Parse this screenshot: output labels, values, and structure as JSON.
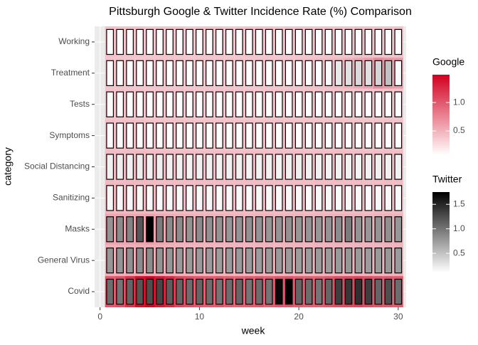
{
  "chart_data": {
    "type": "heatmap",
    "title": "Pittsburgh Google & Twitter Incidence Rate (%) Comparison",
    "x_label": "week",
    "y_label": "category",
    "categories": [
      "Working",
      "Treatment",
      "Tests",
      "Symptoms",
      "Social Distancing",
      "Sanitizing",
      "Masks",
      "General Virus",
      "Covid"
    ],
    "x": [
      1,
      2,
      3,
      4,
      5,
      6,
      7,
      8,
      9,
      10,
      11,
      12,
      13,
      14,
      15,
      16,
      17,
      18,
      19,
      20,
      21,
      22,
      23,
      24,
      25,
      26,
      27,
      28,
      29,
      30
    ],
    "xlim": [
      -0.55,
      30.8
    ],
    "xticks": [
      0,
      10,
      20,
      30
    ],
    "grid": true,
    "series": [
      {
        "name": "Google",
        "color": "#d1001f",
        "clim": [
          0.075,
          1.49
        ],
        "ticks": [
          0.5,
          {
            "value": 1,
            "label": "1.0"
          }
        ],
        "values": [
          [
            0.42,
            0.4,
            0.41,
            0.4,
            0.39,
            0.4,
            0.41,
            0.4,
            0.38,
            0.4,
            0.41,
            0.4,
            0.39,
            0.4,
            0.42,
            0.4,
            0.41,
            0.39,
            0.4,
            0.4,
            0.41,
            0.4,
            0.42,
            0.41,
            0.4,
            0.43,
            0.42,
            0.41,
            0.4,
            0.42
          ],
          [
            0.4,
            0.41,
            0.4,
            0.39,
            0.4,
            0.41,
            0.4,
            0.4,
            0.39,
            0.41,
            0.4,
            0.4,
            0.41,
            0.4,
            0.39,
            0.4,
            0.41,
            0.4,
            0.4,
            0.41,
            0.42,
            0.43,
            0.44,
            0.46,
            0.5,
            0.55,
            0.6,
            0.72,
            0.65,
            0.62
          ],
          [
            0.4,
            0.41,
            0.4,
            0.4,
            0.39,
            0.4,
            0.4,
            0.41,
            0.4,
            0.39,
            0.4,
            0.4,
            0.41,
            0.4,
            0.4,
            0.39,
            0.4,
            0.41,
            0.4,
            0.4,
            0.41,
            0.4,
            0.4,
            0.41,
            0.4,
            0.4,
            0.39,
            0.4,
            0.41,
            0.4
          ],
          [
            0.43,
            0.42,
            0.44,
            0.43,
            0.42,
            0.42,
            0.41,
            0.42,
            0.42,
            0.41,
            0.42,
            0.42,
            0.41,
            0.42,
            0.42,
            0.41,
            0.42,
            0.43,
            0.42,
            0.42,
            0.41,
            0.42,
            0.42,
            0.43,
            0.42,
            0.42,
            0.41,
            0.42,
            0.43,
            0.42
          ],
          [
            0.46,
            0.45,
            0.46,
            0.47,
            0.46,
            0.45,
            0.45,
            0.44,
            0.45,
            0.45,
            0.44,
            0.45,
            0.45,
            0.44,
            0.45,
            0.45,
            0.44,
            0.45,
            0.46,
            0.45,
            0.44,
            0.45,
            0.45,
            0.46,
            0.45,
            0.45,
            0.44,
            0.45,
            0.46,
            0.45
          ],
          [
            0.48,
            0.47,
            0.48,
            0.47,
            0.47,
            0.46,
            0.46,
            0.46,
            0.45,
            0.46,
            0.46,
            0.45,
            0.46,
            0.46,
            0.45,
            0.46,
            0.46,
            0.45,
            0.46,
            0.46,
            0.45,
            0.46,
            0.46,
            0.45,
            0.46,
            0.46,
            0.45,
            0.46,
            0.46,
            0.45
          ],
          [
            0.58,
            0.58,
            0.57,
            0.58,
            0.6,
            0.56,
            0.54,
            0.52,
            0.52,
            0.51,
            0.5,
            0.51,
            0.5,
            0.5,
            0.49,
            0.5,
            0.5,
            0.49,
            0.5,
            0.5,
            0.49,
            0.5,
            0.5,
            0.51,
            0.5,
            0.5,
            0.49,
            0.5,
            0.51,
            0.5
          ],
          [
            0.52,
            0.52,
            0.53,
            0.54,
            0.54,
            0.53,
            0.52,
            0.51,
            0.5,
            0.5,
            0.5,
            0.49,
            0.5,
            0.5,
            0.49,
            0.5,
            0.5,
            0.49,
            0.5,
            0.5,
            0.49,
            0.5,
            0.5,
            0.5,
            0.49,
            0.5,
            0.5,
            0.49,
            0.5,
            0.5
          ],
          [
            1.0,
            1.05,
            1.2,
            1.4,
            1.45,
            1.35,
            1.25,
            1.1,
            1.05,
            1.0,
            0.98,
            1.0,
            0.97,
            0.95,
            0.98,
            1.0,
            0.97,
            1.0,
            1.02,
            0.98,
            0.97,
            0.96,
            1.0,
            1.05,
            1.08,
            1.1,
            1.05,
            1.02,
            1.0,
            0.98
          ]
        ]
      },
      {
        "name": "Twitter",
        "color": "#000000",
        "clim": [
          0.11,
          1.75
        ],
        "ticks": [
          0.5,
          {
            "value": 1,
            "label": "1.0"
          },
          1.5
        ],
        "values": [
          [
            0.12,
            0.12,
            0.12,
            0.12,
            0.12,
            0.12,
            0.12,
            0.12,
            0.12,
            0.12,
            0.12,
            0.12,
            0.12,
            0.12,
            0.12,
            0.12,
            0.12,
            0.12,
            0.12,
            0.12,
            0.12,
            0.12,
            0.12,
            0.12,
            0.12,
            0.12,
            0.12,
            0.12,
            0.12,
            0.12
          ],
          [
            0.12,
            0.12,
            0.12,
            0.12,
            0.12,
            0.12,
            0.12,
            0.12,
            0.12,
            0.12,
            0.12,
            0.12,
            0.12,
            0.12,
            0.12,
            0.12,
            0.12,
            0.12,
            0.12,
            0.12,
            0.12,
            0.12,
            0.14,
            0.25,
            0.3,
            0.35,
            0.3,
            0.38,
            0.5,
            0.14
          ],
          [
            0.12,
            0.12,
            0.12,
            0.12,
            0.12,
            0.12,
            0.12,
            0.12,
            0.12,
            0.12,
            0.12,
            0.12,
            0.12,
            0.12,
            0.12,
            0.12,
            0.12,
            0.12,
            0.12,
            0.12,
            0.12,
            0.12,
            0.12,
            0.12,
            0.12,
            0.12,
            0.12,
            0.12,
            0.12,
            0.12
          ],
          [
            0.13,
            0.13,
            0.13,
            0.13,
            0.13,
            0.13,
            0.13,
            0.13,
            0.13,
            0.13,
            0.13,
            0.13,
            0.13,
            0.13,
            0.13,
            0.13,
            0.13,
            0.13,
            0.13,
            0.13,
            0.13,
            0.13,
            0.13,
            0.13,
            0.13,
            0.13,
            0.13,
            0.13,
            0.13,
            0.13
          ],
          [
            0.2,
            0.21,
            0.2,
            0.22,
            0.2,
            0.21,
            0.2,
            0.2,
            0.19,
            0.2,
            0.2,
            0.19,
            0.2,
            0.2,
            0.19,
            0.2,
            0.2,
            0.19,
            0.2,
            0.21,
            0.2,
            0.2,
            0.19,
            0.2,
            0.2,
            0.19,
            0.2,
            0.21,
            0.2,
            0.2
          ],
          [
            0.16,
            0.16,
            0.17,
            0.16,
            0.16,
            0.15,
            0.16,
            0.16,
            0.15,
            0.16,
            0.16,
            0.15,
            0.16,
            0.16,
            0.15,
            0.16,
            0.16,
            0.15,
            0.16,
            0.16,
            0.15,
            0.16,
            0.16,
            0.15,
            0.16,
            0.16,
            0.15,
            0.16,
            0.16,
            0.15
          ],
          [
            0.8,
            0.85,
            0.9,
            1.2,
            1.75,
            0.95,
            0.85,
            0.85,
            0.8,
            0.85,
            0.82,
            0.8,
            0.78,
            0.8,
            0.82,
            0.8,
            0.78,
            0.8,
            0.82,
            0.78,
            0.8,
            0.78,
            0.8,
            0.85,
            0.95,
            0.8,
            0.78,
            0.8,
            0.82,
            0.78
          ],
          [
            0.78,
            0.8,
            0.82,
            0.85,
            0.84,
            0.8,
            0.78,
            0.76,
            0.75,
            0.76,
            0.75,
            0.74,
            0.75,
            0.76,
            0.75,
            0.74,
            0.75,
            0.76,
            0.75,
            0.74,
            0.75,
            0.76,
            0.75,
            0.76,
            0.78,
            0.76,
            0.75,
            0.76,
            0.77,
            0.75
          ],
          [
            1.05,
            1.0,
            1.1,
            1.2,
            1.25,
            1.3,
            1.15,
            1.1,
            1.05,
            1.1,
            1.05,
            1.0,
            1.05,
            1.1,
            1.0,
            1.05,
            1.0,
            1.7,
            1.75,
            1.1,
            1.05,
            1.0,
            1.1,
            1.35,
            1.4,
            1.45,
            1.35,
            1.1,
            1.25,
            1.05
          ]
        ]
      }
    ]
  }
}
